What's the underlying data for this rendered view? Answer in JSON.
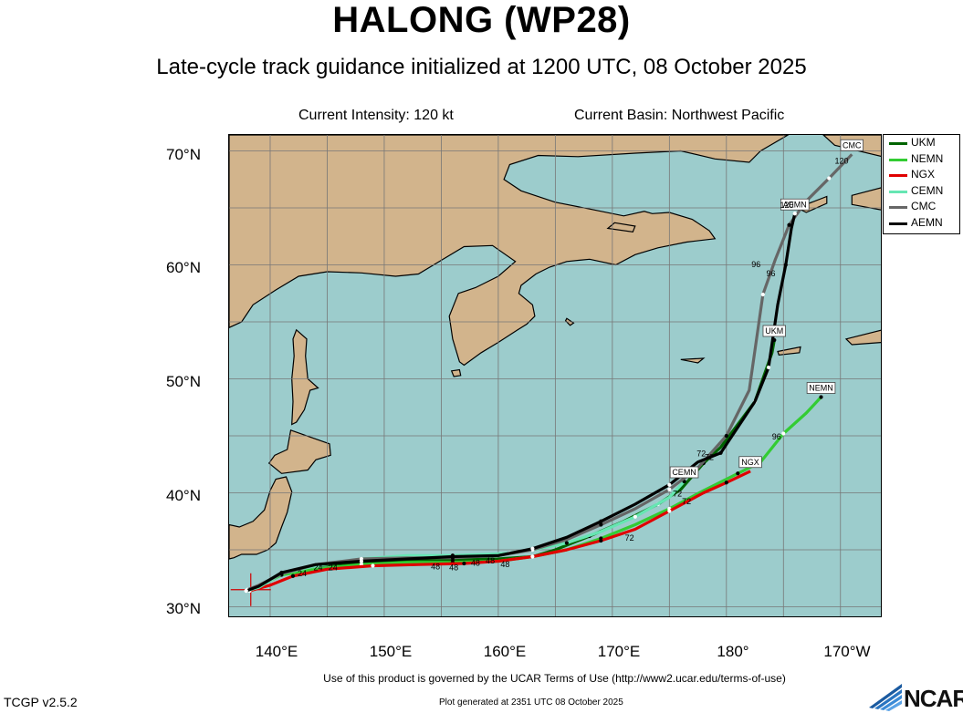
{
  "header": {
    "title": "HALONG (WP28)",
    "subtitle": "Late-cycle track guidance initialized at 1200 UTC, 08 October 2025",
    "current_intensity": "Current Intensity: 120 kt",
    "current_basin": "Current Basin: Northwest Pacific"
  },
  "axes": {
    "lat_labels": [
      "70°N",
      "60°N",
      "50°N",
      "40°N",
      "30°N"
    ],
    "lon_labels": [
      "140°E",
      "150°E",
      "160°E",
      "170°E",
      "180°",
      "170°W"
    ]
  },
  "legend": [
    {
      "name": "UKM",
      "color": "#006400"
    },
    {
      "name": "NEMN",
      "color": "#33cc33"
    },
    {
      "name": "NGX",
      "color": "#e00000"
    },
    {
      "name": "CEMN",
      "color": "#66e6b3"
    },
    {
      "name": "CMC",
      "color": "#666666"
    },
    {
      "name": "AEMN",
      "color": "#000000"
    }
  ],
  "models": [
    {
      "name": "UKM",
      "color": "#006400",
      "end_label": "UKM",
      "track": [
        [
          137.9,
          31.4
        ],
        [
          139,
          31.8
        ],
        [
          141,
          32.9
        ],
        [
          144,
          33.6
        ],
        [
          148,
          33.9
        ],
        [
          152,
          34.1
        ],
        [
          156,
          34.1
        ],
        [
          160,
          34.2
        ],
        [
          163,
          34.4
        ],
        [
          165,
          35.0
        ],
        [
          168,
          36.2
        ],
        [
          171,
          37.5
        ],
        [
          174,
          39.0
        ],
        [
          176,
          40.3
        ],
        [
          178,
          42.6
        ],
        [
          179.5,
          44.0
        ],
        [
          182.5,
          48.0
        ],
        [
          184,
          52.3
        ],
        [
          184.2,
          53.4
        ]
      ],
      "hour_labels": [
        {
          "text": "72",
          "lon": 177.8,
          "lat": 43.2
        }
      ]
    },
    {
      "name": "NEMN",
      "color": "#33cc33",
      "end_label": "NEMN",
      "track": [
        [
          137.9,
          31.4
        ],
        [
          139,
          31.8
        ],
        [
          141,
          32.8
        ],
        [
          144,
          33.3
        ],
        [
          148,
          33.7
        ],
        [
          152,
          33.9
        ],
        [
          156,
          33.9
        ],
        [
          160,
          34.0
        ],
        [
          163,
          34.4
        ],
        [
          166,
          35.0
        ],
        [
          169,
          36.0
        ],
        [
          172,
          37.2
        ],
        [
          175,
          38.6
        ],
        [
          178,
          40.2
        ],
        [
          181,
          41.7
        ],
        [
          183,
          42.7
        ],
        [
          185,
          45.2
        ],
        [
          187,
          47.0
        ],
        [
          188.3,
          48.4
        ]
      ],
      "hour_labels": [
        {
          "text": "72",
          "lon": 176.5,
          "lat": 39.0
        },
        {
          "text": "96",
          "lon": 184.4,
          "lat": 44.7
        }
      ]
    },
    {
      "name": "NGX",
      "color": "#e00000",
      "end_label": "NGX",
      "track": [
        [
          138.2,
          31.4
        ],
        [
          140,
          31.9
        ],
        [
          142,
          32.7
        ],
        [
          145,
          33.3
        ],
        [
          149,
          33.6
        ],
        [
          153,
          33.7
        ],
        [
          157,
          33.8
        ],
        [
          160,
          34.0
        ],
        [
          163,
          34.4
        ],
        [
          166,
          35.0
        ],
        [
          169,
          35.8
        ],
        [
          172,
          36.8
        ],
        [
          175,
          38.4
        ],
        [
          178,
          40.0
        ],
        [
          180,
          40.9
        ],
        [
          182.1,
          41.9
        ]
      ],
      "hour_labels": [
        {
          "text": "72",
          "lon": 171.5,
          "lat": 35.8
        }
      ]
    },
    {
      "name": "CEMN",
      "color": "#66e6b3",
      "end_label": "CEMN",
      "track": [
        [
          137.9,
          31.4
        ],
        [
          139,
          31.7
        ],
        [
          141,
          32.9
        ],
        [
          144,
          33.6
        ],
        [
          148,
          34.2
        ],
        [
          152,
          34.5
        ],
        [
          156,
          34.5
        ],
        [
          159,
          34.6
        ],
        [
          161,
          34.7
        ],
        [
          163,
          35.0
        ],
        [
          166,
          35.6
        ],
        [
          169,
          36.6
        ],
        [
          172,
          37.9
        ],
        [
          175,
          39.6
        ],
        [
          176.3,
          41.0
        ]
      ],
      "hour_labels": [
        {
          "text": "72",
          "lon": 175.7,
          "lat": 39.7
        }
      ]
    },
    {
      "name": "CMC",
      "color": "#666666",
      "end_label": "CMC",
      "track": [
        [
          138,
          31.5
        ],
        [
          139,
          31.9
        ],
        [
          141,
          32.9
        ],
        [
          144,
          33.7
        ],
        [
          148,
          34.2
        ],
        [
          152,
          34.3
        ],
        [
          156,
          34.3
        ],
        [
          160,
          34.5
        ],
        [
          163,
          35.0
        ],
        [
          166,
          35.9
        ],
        [
          169,
          37.2
        ],
        [
          172,
          38.6
        ],
        [
          175,
          40.3
        ],
        [
          177.5,
          42.2
        ],
        [
          180,
          45.0
        ],
        [
          182,
          49.0
        ],
        [
          183.2,
          57.4
        ],
        [
          184.3,
          60.5
        ],
        [
          185.5,
          63.5
        ],
        [
          187,
          65.6
        ],
        [
          189,
          67.6
        ],
        [
          191,
          69.7
        ]
      ],
      "hour_labels": [
        {
          "text": "96",
          "lon": 182.6,
          "lat": 59.8
        },
        {
          "text": "120",
          "lon": 190.1,
          "lat": 68.9
        }
      ]
    },
    {
      "name": "AEMN",
      "color": "#000000",
      "end_label": "AEMN",
      "track": [
        [
          137.9,
          31.4
        ],
        [
          139,
          31.8
        ],
        [
          141,
          33.0
        ],
        [
          144,
          33.7
        ],
        [
          148,
          34.0
        ],
        [
          152,
          34.2
        ],
        [
          156,
          34.4
        ],
        [
          160,
          34.5
        ],
        [
          163,
          35.1
        ],
        [
          166,
          36.1
        ],
        [
          169,
          37.5
        ],
        [
          172,
          39.0
        ],
        [
          175,
          40.7
        ],
        [
          177.5,
          42.7
        ],
        [
          179.5,
          43.5
        ],
        [
          182.5,
          48.0
        ],
        [
          183.7,
          51.0
        ],
        [
          184.5,
          56.5
        ],
        [
          185.2,
          60.0
        ],
        [
          185.7,
          63.2
        ],
        [
          186.0,
          64.5
        ]
      ],
      "hour_labels": [
        {
          "text": "72",
          "lon": 178.5,
          "lat": 42.9
        },
        {
          "text": "96",
          "lon": 183.9,
          "lat": 59.0
        },
        {
          "text": "120",
          "lon": 185.3,
          "lat": 65.0
        }
      ]
    }
  ],
  "track_hour_labels": [
    {
      "text": "24",
      "lon": 142.8,
      "lat": 32.7
    },
    {
      "text": "24",
      "lon": 144.2,
      "lat": 33.2
    },
    {
      "text": "24",
      "lon": 145.5,
      "lat": 33.2
    },
    {
      "text": "48",
      "lon": 154.5,
      "lat": 33.3
    },
    {
      "text": "48",
      "lon": 156.1,
      "lat": 33.2
    },
    {
      "text": "48",
      "lon": 158.0,
      "lat": 33.6
    },
    {
      "text": "48",
      "lon": 159.3,
      "lat": 33.8
    },
    {
      "text": "48",
      "lon": 160.6,
      "lat": 33.5
    }
  ],
  "footer": {
    "terms": "Use of this product is governed by the UCAR Terms of Use (http://www2.ucar.edu/terms-of-use)",
    "version": "TCGP v2.5.2",
    "generated": "Plot generated at 2351 UTC   08 October 2025",
    "ncar_logo_text": "NCAR"
  },
  "map_style": {
    "ocean_color": "#9ccccc",
    "land_color": "#d2b48c",
    "grid_color": "#777777"
  }
}
